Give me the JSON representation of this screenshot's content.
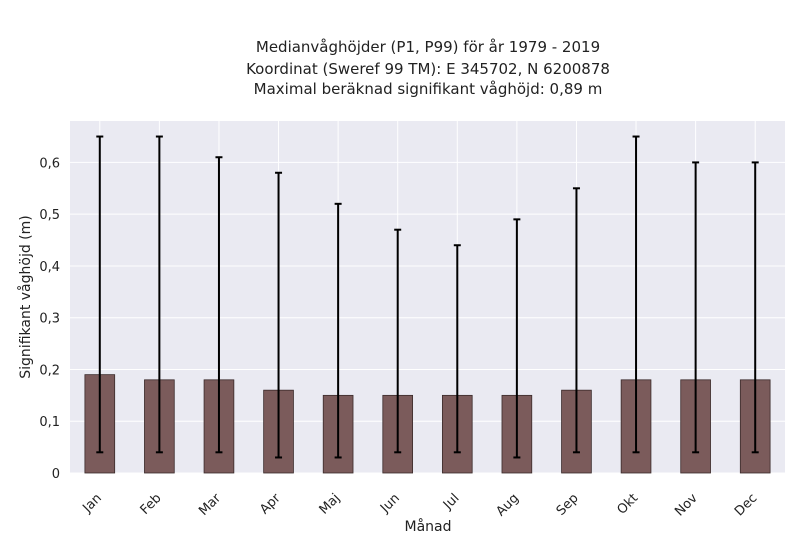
{
  "chart_data": {
    "type": "bar",
    "title_lines": [
      "Medianvåghöjder (P1, P99) för år 1979 - 2019",
      "Koordinat (Sweref 99 TM): E 345702, N 6200878",
      "Maximal beräknad signifikant våghöjd: 0,89 m"
    ],
    "xlabel": "Månad",
    "ylabel": "Signifikant våghöjd (m)",
    "categories": [
      "Jan",
      "Feb",
      "Mar",
      "Apr",
      "Maj",
      "Jun",
      "Jul",
      "Aug",
      "Sep",
      "Okt",
      "Nov",
      "Dec"
    ],
    "values": [
      0.19,
      0.18,
      0.18,
      0.16,
      0.15,
      0.15,
      0.15,
      0.15,
      0.16,
      0.18,
      0.18,
      0.18
    ],
    "error_low": [
      0.04,
      0.04,
      0.04,
      0.03,
      0.03,
      0.04,
      0.04,
      0.03,
      0.04,
      0.04,
      0.04,
      0.04
    ],
    "error_high": [
      0.65,
      0.65,
      0.61,
      0.58,
      0.52,
      0.47,
      0.44,
      0.49,
      0.55,
      0.65,
      0.6,
      0.6
    ],
    "ylim": [
      0,
      0.68
    ],
    "yticks": [
      "0",
      "0,1",
      "0,2",
      "0,3",
      "0,4",
      "0,5",
      "0,6"
    ],
    "ytick_values": [
      0,
      0.1,
      0.2,
      0.3,
      0.4,
      0.5,
      0.6
    ],
    "grid": true,
    "colors": {
      "bar": "#7b5b5b",
      "bar_edge": "#3a2a2a",
      "plot_bg": "#eaeaf2",
      "grid": "#ffffff",
      "error": "#000000"
    }
  }
}
